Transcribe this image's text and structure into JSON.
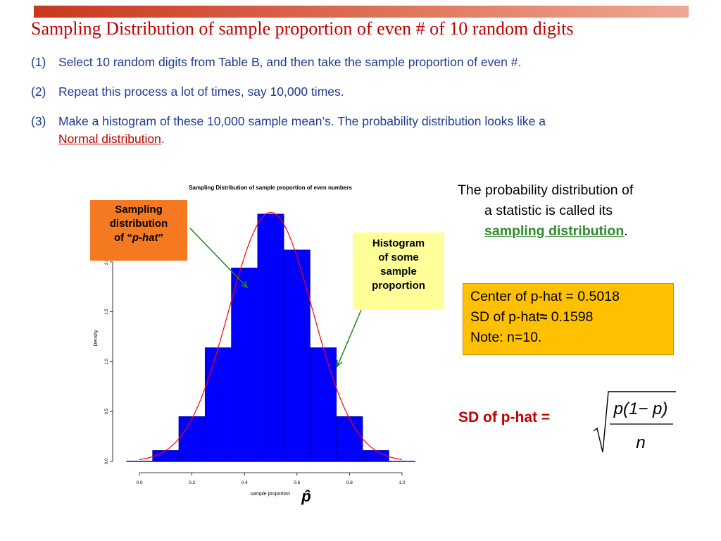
{
  "slide": {
    "title": "Sampling Distribution of sample proportion of even # of 10 random digits",
    "steps": [
      {
        "num": "(1)",
        "text": "Select 10 random digits from Table B, and then take the sample proportion of even #."
      },
      {
        "num": "(2)",
        "text": "Repeat this process a lot of times, say 10,000 times."
      },
      {
        "num": "(3)",
        "text": "Make a histogram of these 10,000 sample mean’s. The probability distribution looks like a",
        "link": "Normal distribution",
        "after": "."
      }
    ]
  },
  "callouts": {
    "orange": {
      "line1": "Sampling",
      "line2": "distribution",
      "pre": "of “",
      "italic": "p-hat",
      "post": "”"
    },
    "yellow": {
      "line1": "Histogram",
      "line2": "of some",
      "line3": "sample",
      "line4": "proportion"
    }
  },
  "description": {
    "line1": "The probability distribution of",
    "line2": "a statistic is called its",
    "link": "sampling distribution",
    "after": "."
  },
  "stats_box": {
    "center": "Center of p-hat = 0.5018",
    "sd_prefix": "SD of p-hat",
    "sd_symbol": "≈",
    "sd_value": " 0.1598",
    "note": "Note: n=10."
  },
  "formula": {
    "label": "SD of p-hat =",
    "numerator": "p(1− p)",
    "denominator": "n"
  },
  "colors": {
    "title": "#c00000",
    "steps": "#1f3a93",
    "bars": "#0000ff",
    "curve": "#ff0000",
    "arrow": "#1a8c1a",
    "orange_box": "#f47920",
    "yellow_box": "#ffff99",
    "gold_box": "#ffc000"
  },
  "chart_data": {
    "type": "bar",
    "title": "Sampling Distribution of sample proportion of even numbers",
    "xlabel": "sample proportion",
    "ylabel": "Density",
    "x_symbol": "p̂",
    "xlim": [
      0,
      1
    ],
    "ylim": [
      0,
      2.5
    ],
    "x_ticks": [
      "0.0",
      "0.2",
      "0.4",
      "0.6",
      "0.8",
      "1.0"
    ],
    "y_ticks": [
      "0.0",
      "0.5",
      "1.0",
      "1.5",
      "2.0"
    ],
    "bins": [
      {
        "from": 0.05,
        "to": 0.15,
        "density": 0.11
      },
      {
        "from": 0.15,
        "to": 0.25,
        "density": 0.45
      },
      {
        "from": 0.25,
        "to": 0.35,
        "density": 1.14
      },
      {
        "from": 0.35,
        "to": 0.45,
        "density": 1.94
      },
      {
        "from": 0.45,
        "to": 0.55,
        "density": 2.48
      },
      {
        "from": 0.55,
        "to": 0.65,
        "density": 2.12
      },
      {
        "from": 0.65,
        "to": 0.75,
        "density": 1.14
      },
      {
        "from": 0.75,
        "to": 0.85,
        "density": 0.45
      },
      {
        "from": 0.85,
        "to": 0.95,
        "density": 0.11
      }
    ],
    "normal_curve": {
      "mean": 0.5,
      "sd": 0.1598
    }
  }
}
